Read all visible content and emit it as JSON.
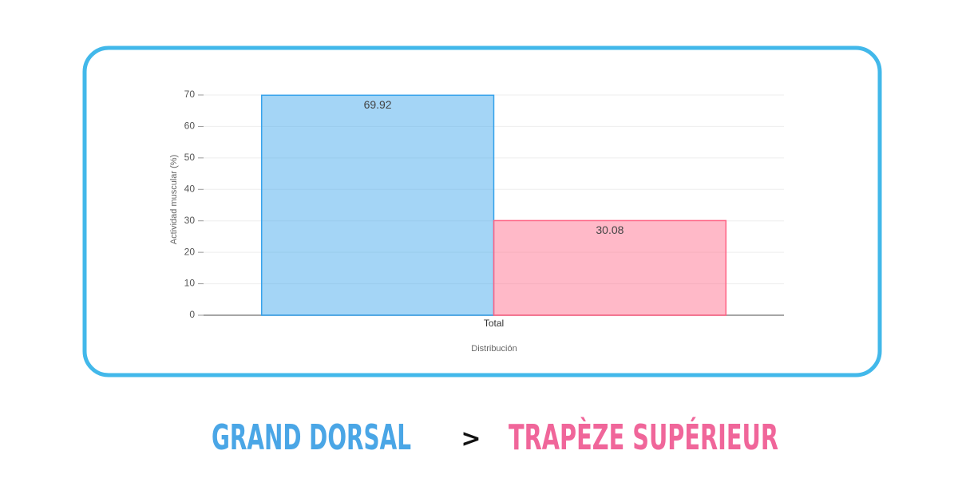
{
  "chart_data": {
    "type": "bar",
    "categories": [
      "Total"
    ],
    "series": [
      {
        "color": "#36a2eb",
        "values": [
          69.92
        ]
      },
      {
        "color": "#ff6384",
        "values": [
          30.08
        ]
      }
    ],
    "ylim": [
      0,
      70
    ],
    "yticks": [
      0,
      10,
      20,
      30,
      40,
      50,
      60,
      70
    ],
    "grid": true,
    "y_label": "Actividad muscular (%)",
    "x_label": "Distribución"
  },
  "caption": {
    "left": "GRAND DORSAL",
    "separator": ">",
    "right": "TRAPÈZE SUPÉRIEUR"
  }
}
